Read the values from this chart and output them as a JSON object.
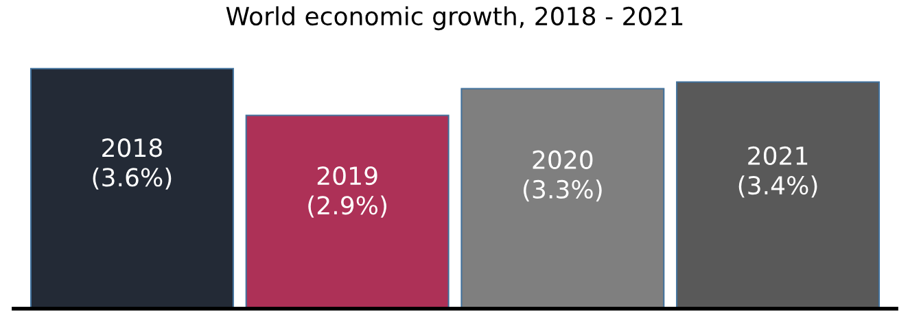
{
  "chart_data": {
    "type": "bar",
    "title": "World economic growth, 2018 - 2021",
    "categories": [
      "2018",
      "2019",
      "2020",
      "2021"
    ],
    "values": [
      3.6,
      2.9,
      3.3,
      3.4
    ],
    "value_labels": [
      "(3.6%)",
      "(2.9%)",
      "(3.3%)",
      "(3.4%)"
    ],
    "colors": [
      "#232a36",
      "#ad3157",
      "#7f7f7f",
      "#595959"
    ],
    "tick_labels": false
  }
}
